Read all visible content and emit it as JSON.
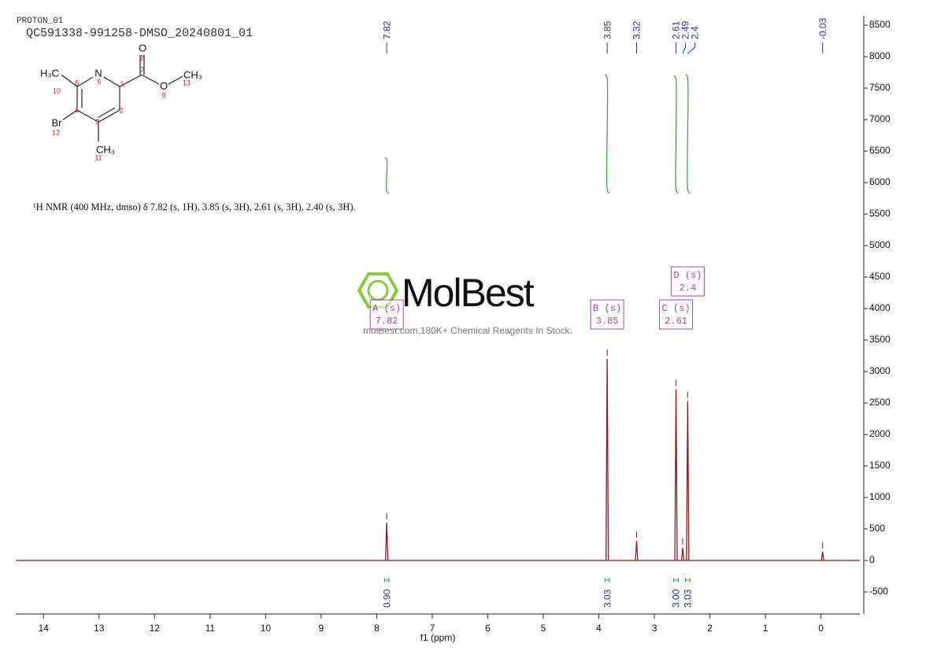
{
  "chart_data": {
    "type": "nmr",
    "header": "PROTON_01",
    "title": "QC591338-991258-DMSO_20240801_01",
    "description": "¹H NMR (400 MHz, dmso) δ 7.82 (s, 1H), 3.85 (s, 3H), 2.61 (s, 3H), 2.40 (s, 3H).",
    "x_label": "f1 (ppm)",
    "xlim": [
      14.5,
      -0.7
    ],
    "xticks": [
      14,
      13,
      12,
      11,
      10,
      9,
      8,
      7,
      6,
      5,
      4,
      3,
      2,
      1,
      0
    ],
    "ylim": [
      -850,
      8650
    ],
    "yticks": [
      -500,
      0,
      500,
      1000,
      1500,
      2000,
      2500,
      3000,
      3500,
      4000,
      4500,
      5000,
      5500,
      6000,
      6500,
      7000,
      7500,
      8000,
      8500
    ],
    "color": "#8b1a1a",
    "label_color": "#2a3585",
    "integral_color": "#3a9a3a",
    "multiplet_color": "#a448a4",
    "peaks": [
      {
        "shift": 7.82,
        "intensity": 600
      },
      {
        "shift": 3.85,
        "intensity": 3200
      },
      {
        "shift": 3.32,
        "intensity": 310
      },
      {
        "shift": 2.61,
        "intensity": 2720
      },
      {
        "shift": 2.49,
        "intensity": 200
      },
      {
        "shift": 2.4,
        "intensity": 2530
      },
      {
        "shift": -0.03,
        "intensity": 140
      }
    ],
    "integrals": [
      {
        "from": 7.86,
        "to": 7.78,
        "value": 0.9,
        "label": "0.90"
      },
      {
        "from": 3.89,
        "to": 3.81,
        "value": 3.03,
        "label": "3.03"
      },
      {
        "from": 2.65,
        "to": 2.57,
        "value": 3.0,
        "label": "3.00"
      },
      {
        "from": 2.44,
        "to": 2.36,
        "value": 3.03,
        "label": "3.03"
      }
    ],
    "multiplets": [
      {
        "label": "A (s)",
        "shift": 7.82
      },
      {
        "label": "B (s)",
        "shift": 3.85
      },
      {
        "label": "C (s)",
        "shift": 2.61
      },
      {
        "label": "D (s)",
        "shift": 2.4
      }
    ],
    "watermark": {
      "brand": "MolBest",
      "tagline": "molBest.com,180K+ Chemical Reagents In Stock."
    },
    "structure": {
      "atoms": [
        "H₃C",
        "N",
        "O",
        "O",
        "CH₃",
        "Br",
        "CH₃"
      ],
      "numbers": [
        10,
        5,
        6,
        1,
        7,
        8,
        2,
        4,
        3,
        9,
        13,
        12,
        11
      ]
    }
  }
}
